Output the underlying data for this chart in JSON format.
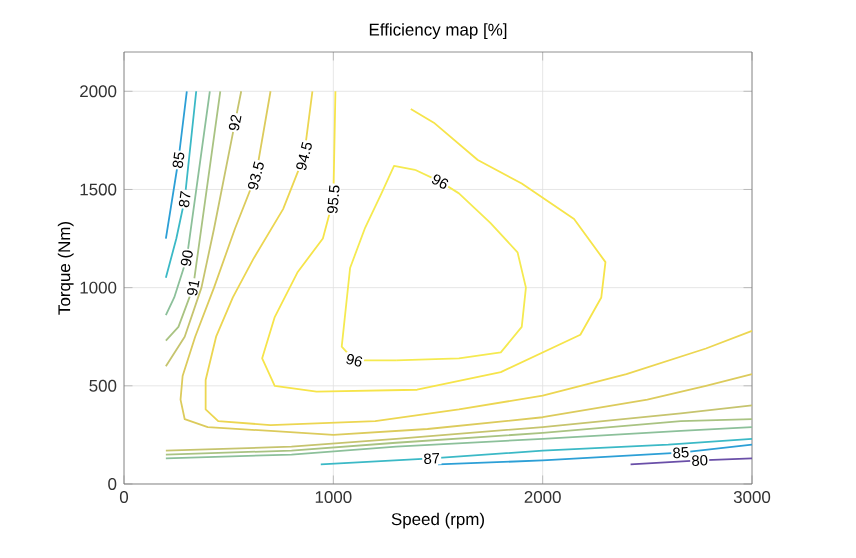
{
  "chart_data": {
    "type": "line",
    "title": "Efficiency map [%]",
    "xlabel": "Speed (rpm)",
    "ylabel": "Torque (Nm)",
    "xlim": [
      0,
      3000
    ],
    "ylim": [
      0,
      2200
    ],
    "xticks": [
      0,
      1000,
      2000,
      3000
    ],
    "yticks": [
      0,
      500,
      1000,
      1500,
      2000
    ],
    "grid": true,
    "series": [
      {
        "name": "80",
        "color": "#6a4fa8",
        "x": [
          3000,
          2750,
          2420
        ],
        "values": [
          130,
          120,
          100
        ]
      },
      {
        "name": "85",
        "color": "#2c9fd6",
        "x": [
          300,
          260,
          230,
          200
        ],
        "values": [
          2000,
          1650,
          1450,
          1250
        ]
      },
      {
        "name": "85",
        "color": "#2c9fd6",
        "x": [
          3000,
          2660,
          2000,
          1500
        ],
        "values": [
          200,
          160,
          120,
          100
        ]
      },
      {
        "name": "87",
        "color": "#3bb9c6",
        "x": [
          345,
          290,
          250,
          200
        ],
        "values": [
          2000,
          1450,
          1250,
          1050
        ]
      },
      {
        "name": "87",
        "color": "#3bb9c6",
        "x": [
          940,
          1470,
          2000,
          2600,
          3000
        ],
        "values": [
          100,
          130,
          170,
          200,
          230
        ]
      },
      {
        "name": "90",
        "color": "#8cc09a",
        "x": [
          410,
          300,
          240,
          200
        ],
        "values": [
          2000,
          1150,
          950,
          860
        ]
      },
      {
        "color": "#8cc09a",
        "x": [
          200,
          800,
          1300,
          2000,
          2660,
          3000
        ],
        "values": [
          130,
          150,
          190,
          230,
          270,
          290
        ]
      },
      {
        "name": "91",
        "color": "#a9c382",
        "x": [
          460,
          330,
          260,
          200
        ],
        "values": [
          2000,
          1000,
          800,
          730
        ]
      },
      {
        "color": "#a9c382",
        "x": [
          200,
          800,
          1300,
          2000,
          2660,
          3000
        ],
        "values": [
          150,
          170,
          210,
          260,
          320,
          330
        ]
      },
      {
        "name": "92",
        "color": "#c6c46e",
        "x": [
          560,
          530,
          430,
          370,
          290,
          200
        ],
        "values": [
          2000,
          1840,
          1300,
          1000,
          750,
          600
        ]
      },
      {
        "color": "#c6c46e",
        "x": [
          200,
          800,
          1300,
          2000,
          2660,
          3000
        ],
        "values": [
          170,
          190,
          230,
          290,
          360,
          400
        ]
      },
      {
        "name": "93.5",
        "color": "#dccb5c",
        "x": [
          700,
          630,
          530,
          430,
          340,
          280,
          270,
          290,
          400,
          700,
          1000,
          1450,
          2000,
          2500,
          2780,
          3000
        ],
        "values": [
          2000,
          1570,
          1300,
          1000,
          750,
          550,
          430,
          330,
          290,
          270,
          250,
          280,
          340,
          430,
          500,
          560
        ]
      },
      {
        "name": "94.5",
        "color": "#ecd651",
        "x": [
          900,
          860,
          760,
          620,
          520,
          440,
          390,
          390,
          450,
          700,
          1200,
          1600,
          2000,
          2400,
          2780,
          3000
        ],
        "values": [
          2000,
          1670,
          1400,
          1150,
          950,
          750,
          530,
          380,
          320,
          300,
          320,
          380,
          450,
          560,
          690,
          780
        ]
      },
      {
        "name": "95.5",
        "color": "#f6e44a",
        "x": [
          1010,
          1000,
          950,
          830,
          720,
          660,
          720,
          920,
          1400,
          1800,
          2180,
          2280,
          2300,
          2150,
          1900,
          1690,
          1480,
          1370
        ],
        "values": [
          2000,
          1450,
          1250,
          1080,
          850,
          640,
          500,
          470,
          480,
          570,
          760,
          950,
          1130,
          1350,
          1530,
          1650,
          1840,
          1910
        ]
      },
      {
        "name": "96",
        "color": "#f5ea50",
        "x": [
          1390,
          1510,
          1600,
          1750,
          1880,
          1920,
          1900,
          1800,
          1600,
          1300
        ],
        "values": [
          1600,
          1540,
          1480,
          1330,
          1180,
          1000,
          800,
          670,
          640,
          630
        ]
      },
      {
        "name": "96",
        "color": "#f5ea50",
        "x": [
          1300,
          1100,
          1040,
          1060,
          1080,
          1150,
          1230,
          1290,
          1390
        ],
        "values": [
          630,
          630,
          700,
          900,
          1100,
          1300,
          1480,
          1620,
          1600
        ]
      }
    ]
  }
}
